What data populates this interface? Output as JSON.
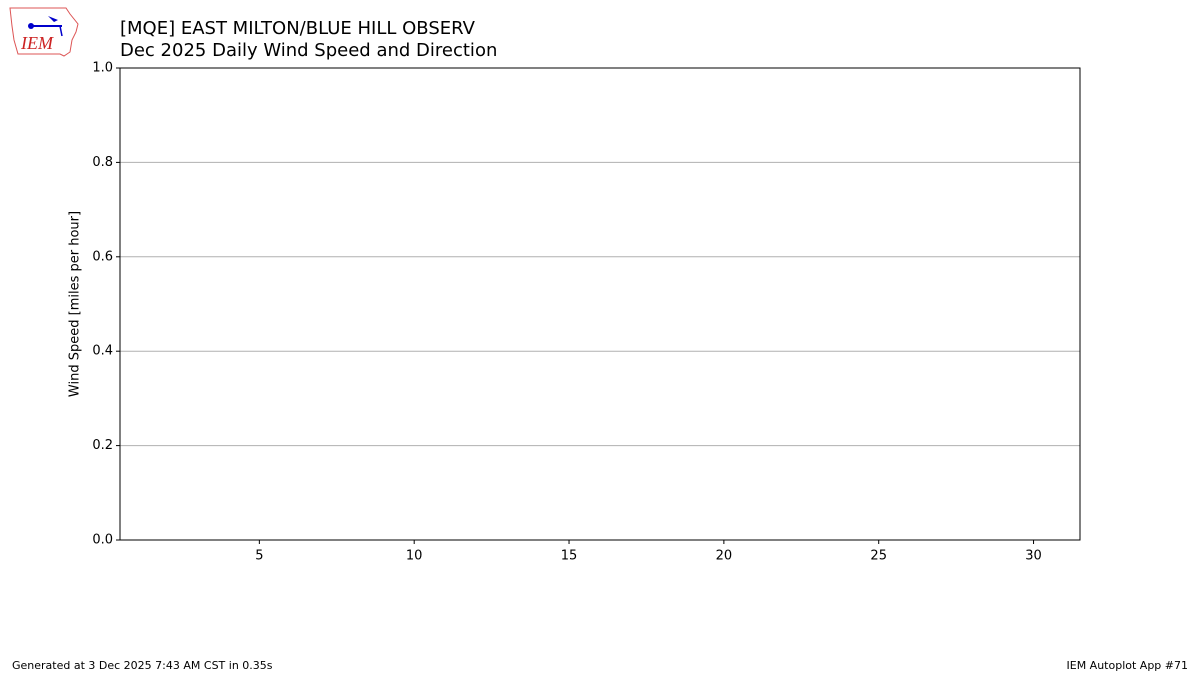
{
  "logo": {
    "text": "IEM"
  },
  "chart_data": {
    "type": "bar",
    "title": "[MQE] EAST MILTON/BLUE HILL OBSERV",
    "subtitle": "Dec 2025 Daily Wind Speed and Direction",
    "ylabel": "Wind Speed [miles per hour]",
    "xlim": [
      0.5,
      31.5
    ],
    "xticks": [
      5,
      10,
      15,
      20,
      25,
      30
    ],
    "ylim": [
      0,
      1
    ],
    "yticks": [
      {
        "value": 0,
        "label": "0.0"
      },
      0.2,
      0.4,
      0.6,
      0.8,
      {
        "value": 1,
        "label": "1.0"
      }
    ],
    "grid": true
  },
  "footer": {
    "left": "Generated at 3 Dec 2025 7:43 AM CST in 0.35s",
    "right": "IEM Autoplot App #71"
  }
}
